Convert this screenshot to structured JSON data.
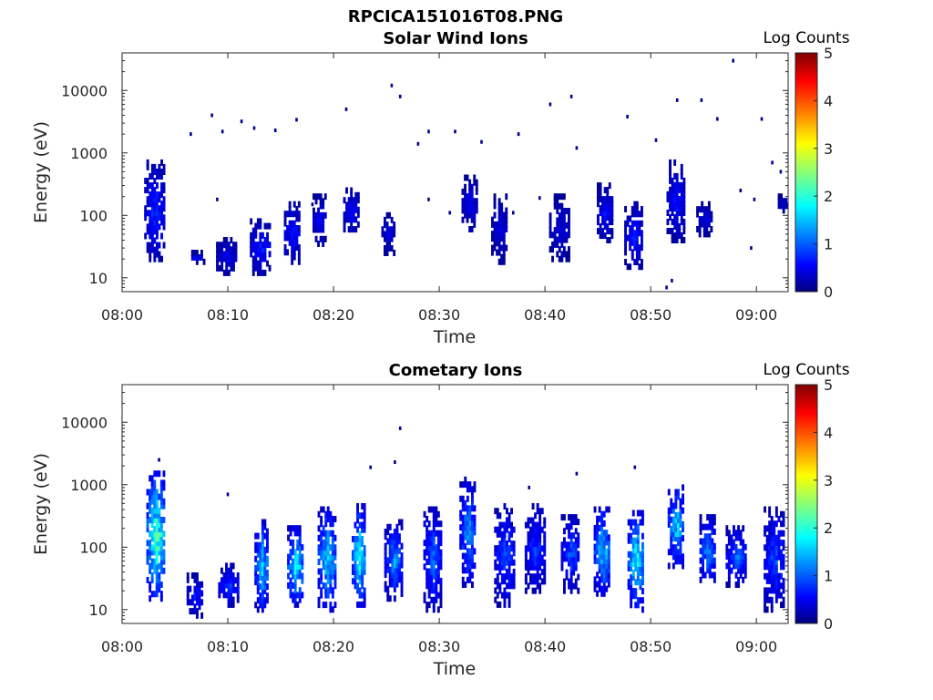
{
  "figure": {
    "title": "RPCICA151016T08.PNG"
  },
  "colors": {
    "colormap": [
      "#00007f",
      "#0000ff",
      "#007fff",
      "#00ffff",
      "#7fff7f",
      "#ffff00",
      "#ff7f00",
      "#ff0000",
      "#7f0000"
    ],
    "data_fill_low": "#000080",
    "axis": "#262626"
  },
  "chart_data": [
    {
      "type": "heatmap",
      "title": "Solar Wind Ions",
      "xlabel": "Time",
      "ylabel": "Energy (eV)",
      "x_ticks": [
        "08:00",
        "08:10",
        "08:20",
        "08:30",
        "08:40",
        "08:50",
        "09:00"
      ],
      "x_tick_minutes": [
        0,
        10,
        20,
        30,
        40,
        50,
        60
      ],
      "xlim_minutes": [
        0,
        63
      ],
      "y_scale": "log",
      "ylim": [
        6,
        40000
      ],
      "y_ticks": [
        "10",
        "100",
        "1000",
        "10000"
      ],
      "y_tick_values": [
        10,
        100,
        1000,
        10000
      ],
      "colorbar": {
        "label": "Log Counts",
        "range": [
          0,
          5
        ],
        "ticks": [
          "0",
          "1",
          "2",
          "3",
          "4",
          "5"
        ]
      },
      "clusters": [
        {
          "t": 3.2,
          "e_min": 20,
          "e_max": 700,
          "peak": 0.9
        },
        {
          "t": 7.1,
          "e_min": 18,
          "e_max": 25,
          "peak": 0.6
        },
        {
          "t": 10.0,
          "e_min": 12,
          "e_max": 40,
          "peak": 0.6
        },
        {
          "t": 13.2,
          "e_min": 12,
          "e_max": 80,
          "peak": 0.8
        },
        {
          "t": 16.2,
          "e_min": 18,
          "e_max": 150,
          "peak": 0.8
        },
        {
          "t": 18.8,
          "e_min": 35,
          "e_max": 200,
          "peak": 0.7
        },
        {
          "t": 21.8,
          "e_min": 50,
          "e_max": 250,
          "peak": 0.7
        },
        {
          "t": 25.3,
          "e_min": 25,
          "e_max": 100,
          "peak": 0.5
        },
        {
          "t": 33.0,
          "e_min": 60,
          "e_max": 400,
          "peak": 0.6
        },
        {
          "t": 35.8,
          "e_min": 18,
          "e_max": 200,
          "peak": 0.5
        },
        {
          "t": 41.5,
          "e_min": 20,
          "e_max": 200,
          "peak": 0.5
        },
        {
          "t": 45.8,
          "e_min": 40,
          "e_max": 300,
          "peak": 0.7
        },
        {
          "t": 48.5,
          "e_min": 15,
          "e_max": 150,
          "peak": 0.8
        },
        {
          "t": 52.5,
          "e_min": 40,
          "e_max": 700,
          "peak": 0.7
        },
        {
          "t": 55.2,
          "e_min": 50,
          "e_max": 150,
          "peak": 0.5
        },
        {
          "t": 62.8,
          "e_min": 120,
          "e_max": 200,
          "peak": 0.5
        }
      ],
      "scattered_points": [
        {
          "t": 25.5,
          "e": 12000
        },
        {
          "t": 26.3,
          "e": 8000
        },
        {
          "t": 40.5,
          "e": 6000
        },
        {
          "t": 42.5,
          "e": 8000
        },
        {
          "t": 52.5,
          "e": 7000
        },
        {
          "t": 54.8,
          "e": 7000
        },
        {
          "t": 57.8,
          "e": 30000
        },
        {
          "t": 60.5,
          "e": 3500
        },
        {
          "t": 8.5,
          "e": 4000
        },
        {
          "t": 11.3,
          "e": 3200
        },
        {
          "t": 12.5,
          "e": 2500
        },
        {
          "t": 16.5,
          "e": 3400
        },
        {
          "t": 21.2,
          "e": 5000
        },
        {
          "t": 29.0,
          "e": 2200
        },
        {
          "t": 31.5,
          "e": 2200
        },
        {
          "t": 37.5,
          "e": 2000
        },
        {
          "t": 47.8,
          "e": 3800
        },
        {
          "t": 56.3,
          "e": 3500
        },
        {
          "t": 61.5,
          "e": 700
        },
        {
          "t": 62.3,
          "e": 500
        },
        {
          "t": 6.5,
          "e": 2000
        },
        {
          "t": 9.5,
          "e": 2200
        },
        {
          "t": 14.5,
          "e": 2300
        },
        {
          "t": 28.0,
          "e": 1400
        },
        {
          "t": 34.0,
          "e": 1500
        },
        {
          "t": 43.0,
          "e": 1200
        },
        {
          "t": 50.5,
          "e": 1600
        },
        {
          "t": 9.0,
          "e": 180
        },
        {
          "t": 18.0,
          "e": 150
        },
        {
          "t": 29.0,
          "e": 180
        },
        {
          "t": 31.0,
          "e": 110
        },
        {
          "t": 37.0,
          "e": 110
        },
        {
          "t": 39.5,
          "e": 190
        },
        {
          "t": 59.5,
          "e": 30
        },
        {
          "t": 58.5,
          "e": 250
        },
        {
          "t": 59.8,
          "e": 180
        },
        {
          "t": 51.5,
          "e": 7
        },
        {
          "t": 52.0,
          "e": 9
        }
      ]
    },
    {
      "type": "heatmap",
      "title": "Cometary Ions",
      "xlabel": "Time",
      "ylabel": "Energy (eV)",
      "x_ticks": [
        "08:00",
        "08:10",
        "08:20",
        "08:30",
        "08:40",
        "08:50",
        "09:00"
      ],
      "x_tick_minutes": [
        0,
        10,
        20,
        30,
        40,
        50,
        60
      ],
      "xlim_minutes": [
        0,
        63
      ],
      "y_scale": "log",
      "ylim": [
        6,
        40000
      ],
      "y_ticks": [
        "10",
        "100",
        "1000",
        "10000"
      ],
      "y_tick_values": [
        10,
        100,
        1000,
        10000
      ],
      "colorbar": {
        "label": "Log Counts",
        "range": [
          0,
          5
        ],
        "ticks": [
          "0",
          "1",
          "2",
          "3",
          "4",
          "5"
        ]
      },
      "clusters": [
        {
          "t": 3.3,
          "e_min": 15,
          "e_max": 1500,
          "peak": 2.4
        },
        {
          "t": 7.0,
          "e_min": 8,
          "e_max": 35,
          "peak": 0.8
        },
        {
          "t": 10.2,
          "e_min": 12,
          "e_max": 50,
          "peak": 1.0
        },
        {
          "t": 13.3,
          "e_min": 10,
          "e_max": 250,
          "peak": 1.8
        },
        {
          "t": 16.5,
          "e_min": 12,
          "e_max": 200,
          "peak": 2.0
        },
        {
          "t": 19.5,
          "e_min": 10,
          "e_max": 400,
          "peak": 1.8
        },
        {
          "t": 22.5,
          "e_min": 12,
          "e_max": 450,
          "peak": 2.1
        },
        {
          "t": 25.8,
          "e_min": 15,
          "e_max": 250,
          "peak": 1.4
        },
        {
          "t": 29.5,
          "e_min": 10,
          "e_max": 400,
          "peak": 1.2
        },
        {
          "t": 32.8,
          "e_min": 25,
          "e_max": 1200,
          "peak": 1.5
        },
        {
          "t": 36.3,
          "e_min": 12,
          "e_max": 450,
          "peak": 1.1
        },
        {
          "t": 39.2,
          "e_min": 20,
          "e_max": 450,
          "peak": 1.0
        },
        {
          "t": 42.5,
          "e_min": 20,
          "e_max": 300,
          "peak": 1.1
        },
        {
          "t": 45.5,
          "e_min": 18,
          "e_max": 400,
          "peak": 1.8
        },
        {
          "t": 48.7,
          "e_min": 10,
          "e_max": 350,
          "peak": 2.1
        },
        {
          "t": 52.5,
          "e_min": 50,
          "e_max": 900,
          "peak": 1.8
        },
        {
          "t": 55.5,
          "e_min": 25,
          "e_max": 300,
          "peak": 1.4
        },
        {
          "t": 58.2,
          "e_min": 25,
          "e_max": 200,
          "peak": 1.2
        },
        {
          "t": 61.8,
          "e_min": 10,
          "e_max": 400,
          "peak": 1.1
        }
      ],
      "scattered_points": [
        {
          "t": 26.3,
          "e": 8000
        },
        {
          "t": 23.5,
          "e": 1900
        },
        {
          "t": 25.8,
          "e": 2300
        },
        {
          "t": 43.0,
          "e": 1500
        },
        {
          "t": 48.5,
          "e": 1900
        },
        {
          "t": 3.5,
          "e": 2500
        },
        {
          "t": 10.0,
          "e": 700
        },
        {
          "t": 38.5,
          "e": 900
        }
      ]
    }
  ]
}
